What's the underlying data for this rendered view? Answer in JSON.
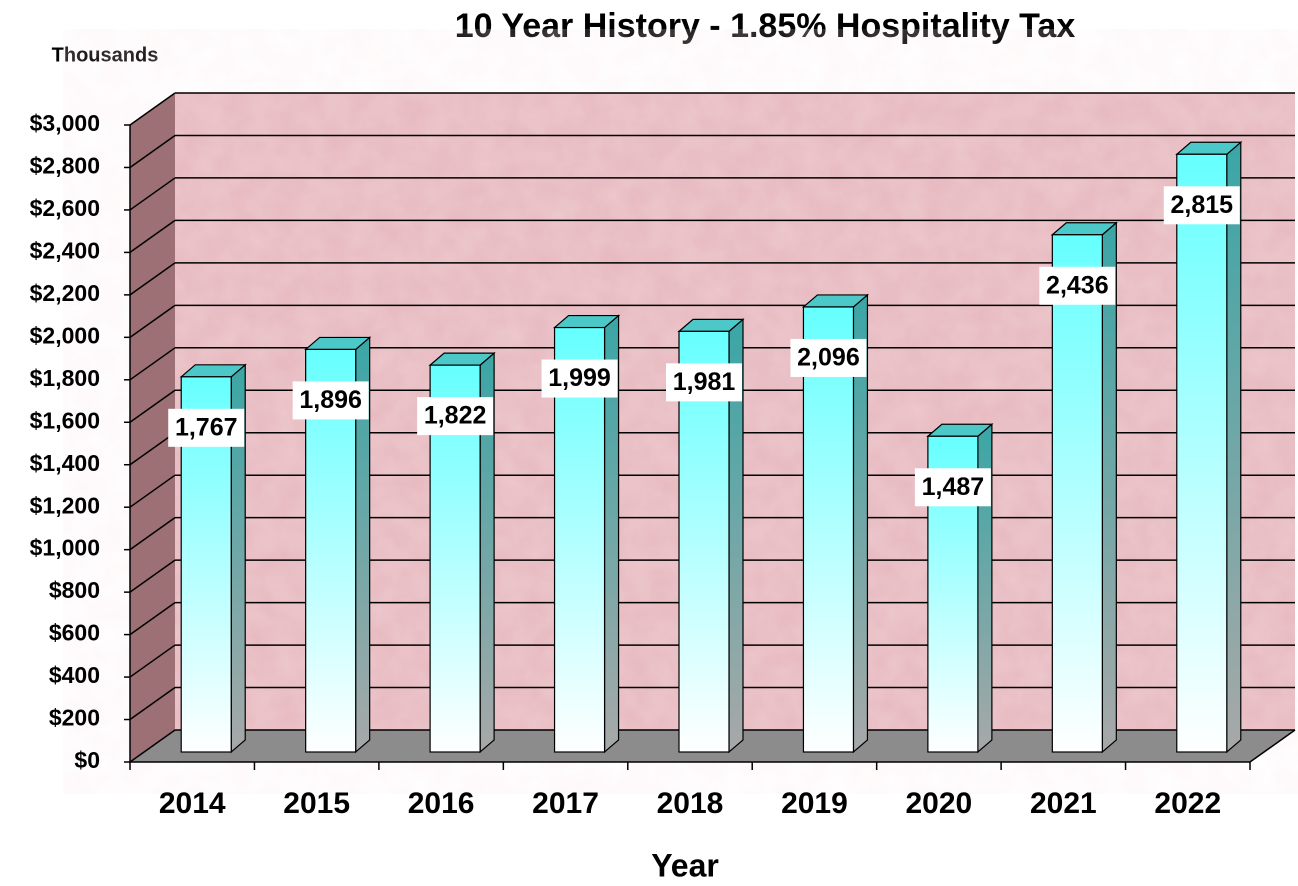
{
  "chart_data": {
    "type": "bar3d",
    "title": "10 Year History - 1.85% Hospitality Tax",
    "unit_label": "Thousands",
    "x_label": "Year",
    "categories": [
      "2014",
      "2015",
      "2016",
      "2017",
      "2018",
      "2019",
      "2020",
      "2021",
      "2022"
    ],
    "values": [
      1767,
      1896,
      1822,
      1999,
      1981,
      2096,
      1487,
      2436,
      2815
    ],
    "value_labels": [
      "1,767",
      "1,896",
      "1,822",
      "1,999",
      "1,981",
      "2,096",
      "1,487",
      "2,436",
      "2,815"
    ],
    "color": "#66ffff",
    "ylim": [
      0,
      3000
    ],
    "yticks": [
      {
        "value": 0,
        "label": "$0"
      },
      {
        "value": 200,
        "label": "$200"
      },
      {
        "value": 400,
        "label": "$400"
      },
      {
        "value": 600,
        "label": "$600"
      },
      {
        "value": 800,
        "label": "$800"
      },
      {
        "value": 1000,
        "label": "$1,000"
      },
      {
        "value": 1200,
        "label": "$1,200"
      },
      {
        "value": 1400,
        "label": "$1,400"
      },
      {
        "value": 1600,
        "label": "$1,600"
      },
      {
        "value": 1800,
        "label": "$1,800"
      },
      {
        "value": 2000,
        "label": "$2,000"
      },
      {
        "value": 2200,
        "label": "$2,200"
      },
      {
        "value": 2400,
        "label": "$2,400"
      },
      {
        "value": 2600,
        "label": "$2,600"
      },
      {
        "value": 2800,
        "label": "$2,800"
      },
      {
        "value": 3000,
        "label": "$3,000"
      }
    ],
    "grid": true
  }
}
